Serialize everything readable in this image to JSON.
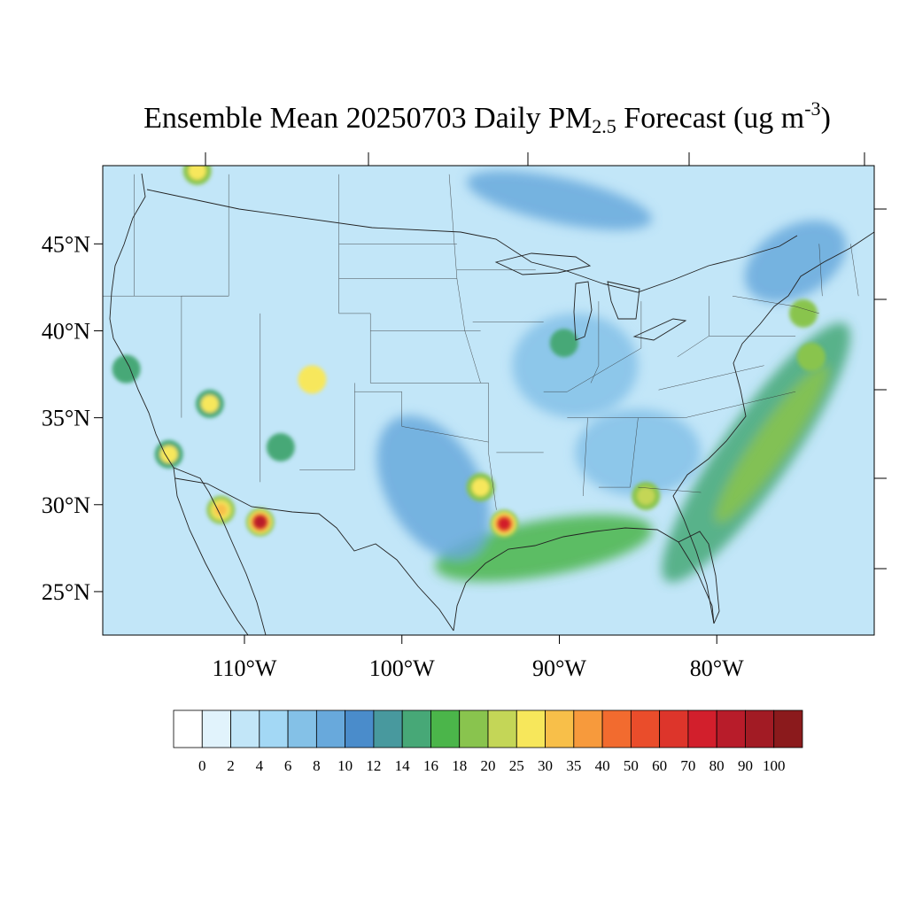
{
  "title": {
    "prefix": "Ensemble Mean 20250703 Daily PM",
    "subscript": "2.5",
    "middle": " Forecast (ug m",
    "superscript": "-3",
    "suffix": ")"
  },
  "map": {
    "lon_range": [
      -119,
      -70
    ],
    "lat_range": [
      22.5,
      49.5
    ],
    "lat_ticks": [
      {
        "value": 45,
        "label": "45°N"
      },
      {
        "value": 40,
        "label": "40°N"
      },
      {
        "value": 35,
        "label": "35°N"
      },
      {
        "value": 30,
        "label": "30°N"
      },
      {
        "value": 25,
        "label": "25°N"
      }
    ],
    "lon_ticks": [
      {
        "value": -110,
        "label": "110°W"
      },
      {
        "value": -100,
        "label": "100°W"
      },
      {
        "value": -90,
        "label": "90°W"
      },
      {
        "value": -80,
        "label": "80°W"
      }
    ],
    "background_level_color": "#c2e6f8"
  },
  "colorbar": {
    "labels": [
      "0",
      "2",
      "4",
      "6",
      "8",
      "10",
      "12",
      "14",
      "16",
      "18",
      "20",
      "25",
      "30",
      "35",
      "40",
      "50",
      "60",
      "70",
      "80",
      "90",
      "100"
    ],
    "colors": [
      "#ffffff",
      "#e1f3fc",
      "#c2e6f8",
      "#a3d8f5",
      "#84c1e7",
      "#68a9dc",
      "#4a8ccb",
      "#48999e",
      "#47a877",
      "#4bb54a",
      "#89c44e",
      "#c4d657",
      "#f7e75b",
      "#f8bf49",
      "#f79a3c",
      "#f26b2f",
      "#ea4d2b",
      "#dd352b",
      "#d21f2c",
      "#b81c2a",
      "#a21b24",
      "#8b1a1c"
    ]
  },
  "plumes": [
    {
      "name": "gulf-coast-band",
      "lon": -91,
      "lat": 27.5,
      "rx": 7,
      "ry": 1.6,
      "rot": -10,
      "color": "#4bb54a"
    },
    {
      "name": "atlantic-band",
      "lon": -77.5,
      "lat": 33,
      "rx": 2.2,
      "ry": 9,
      "rot": 35,
      "color": "#47a877"
    },
    {
      "name": "atlantic-band-core",
      "lon": -76.5,
      "lat": 33.5,
      "rx": 1.1,
      "ry": 5.5,
      "rot": 35,
      "color": "#89c44e"
    },
    {
      "name": "texas-arc",
      "lon": -98,
      "lat": 31,
      "rx": 3,
      "ry": 4.5,
      "rot": -30,
      "color": "#68a9dc"
    },
    {
      "name": "great-lakes-plume",
      "lon": -90,
      "lat": 47.5,
      "rx": 6,
      "ry": 1.3,
      "rot": 12,
      "color": "#68a9dc"
    },
    {
      "name": "northeast-plume",
      "lon": -75,
      "lat": 44,
      "rx": 3.5,
      "ry": 2,
      "rot": -30,
      "color": "#68a9dc"
    },
    {
      "name": "southeast-plume",
      "lon": -85,
      "lat": 33,
      "rx": 4,
      "ry": 2.5,
      "rot": 0,
      "color": "#84c1e7"
    },
    {
      "name": "midwest-plume",
      "lon": -89,
      "lat": 38,
      "rx": 4,
      "ry": 3,
      "rot": 0,
      "color": "#84c1e7"
    }
  ],
  "hotspots": [
    {
      "name": "louisiana-fire",
      "lon": -93.5,
      "lat": 28.9,
      "levels": [
        "#89c44e",
        "#f7e75b",
        "#f26b2f",
        "#d21f2c"
      ]
    },
    {
      "name": "sonora-fire",
      "lon": -109,
      "lat": 29,
      "levels": [
        "#89c44e",
        "#f7e75b",
        "#ea4d2b",
        "#b81c2a"
      ]
    },
    {
      "name": "baja-fire",
      "lon": -111.5,
      "lat": 29.7,
      "levels": [
        "#89c44e",
        "#c4d657",
        "#f7e75b",
        "#f8bf49"
      ]
    },
    {
      "name": "houston-fire",
      "lon": -95,
      "lat": 31,
      "levels": [
        "#89c44e",
        "#f7e75b"
      ]
    },
    {
      "name": "arizona-fire",
      "lon": -112.2,
      "lat": 35.8,
      "levels": [
        "#47a877",
        "#f7e75b"
      ]
    },
    {
      "name": "socal-fire",
      "lon": -114.8,
      "lat": 32.9,
      "levels": [
        "#47a877",
        "#f7e75b"
      ]
    },
    {
      "name": "georgia-fire",
      "lon": -84.5,
      "lat": 30.5,
      "levels": [
        "#89c44e",
        "#c4d657"
      ]
    },
    {
      "name": "canada-fire",
      "lon": -113,
      "lat": 49.2,
      "levels": [
        "#89c44e",
        "#f7e75b"
      ]
    },
    {
      "name": "nevada-fire",
      "lon": -117.5,
      "lat": 37.8,
      "levels": [
        "#47a877"
      ]
    },
    {
      "name": "colorado-fire",
      "lon": -105.7,
      "lat": 37.2,
      "levels": [
        "#f7e75b"
      ]
    },
    {
      "name": "newmexico-fire",
      "lon": -107.7,
      "lat": 33.3,
      "levels": [
        "#47a877"
      ]
    },
    {
      "name": "michigan-fire",
      "lon": -89.7,
      "lat": 39.3,
      "levels": [
        "#47a877"
      ]
    },
    {
      "name": "ontario-fire",
      "lon": -74.5,
      "lat": 41,
      "levels": [
        "#89c44e"
      ]
    },
    {
      "name": "quebec-fire",
      "lon": -74,
      "lat": 38.5,
      "levels": [
        "#89c44e"
      ]
    }
  ]
}
